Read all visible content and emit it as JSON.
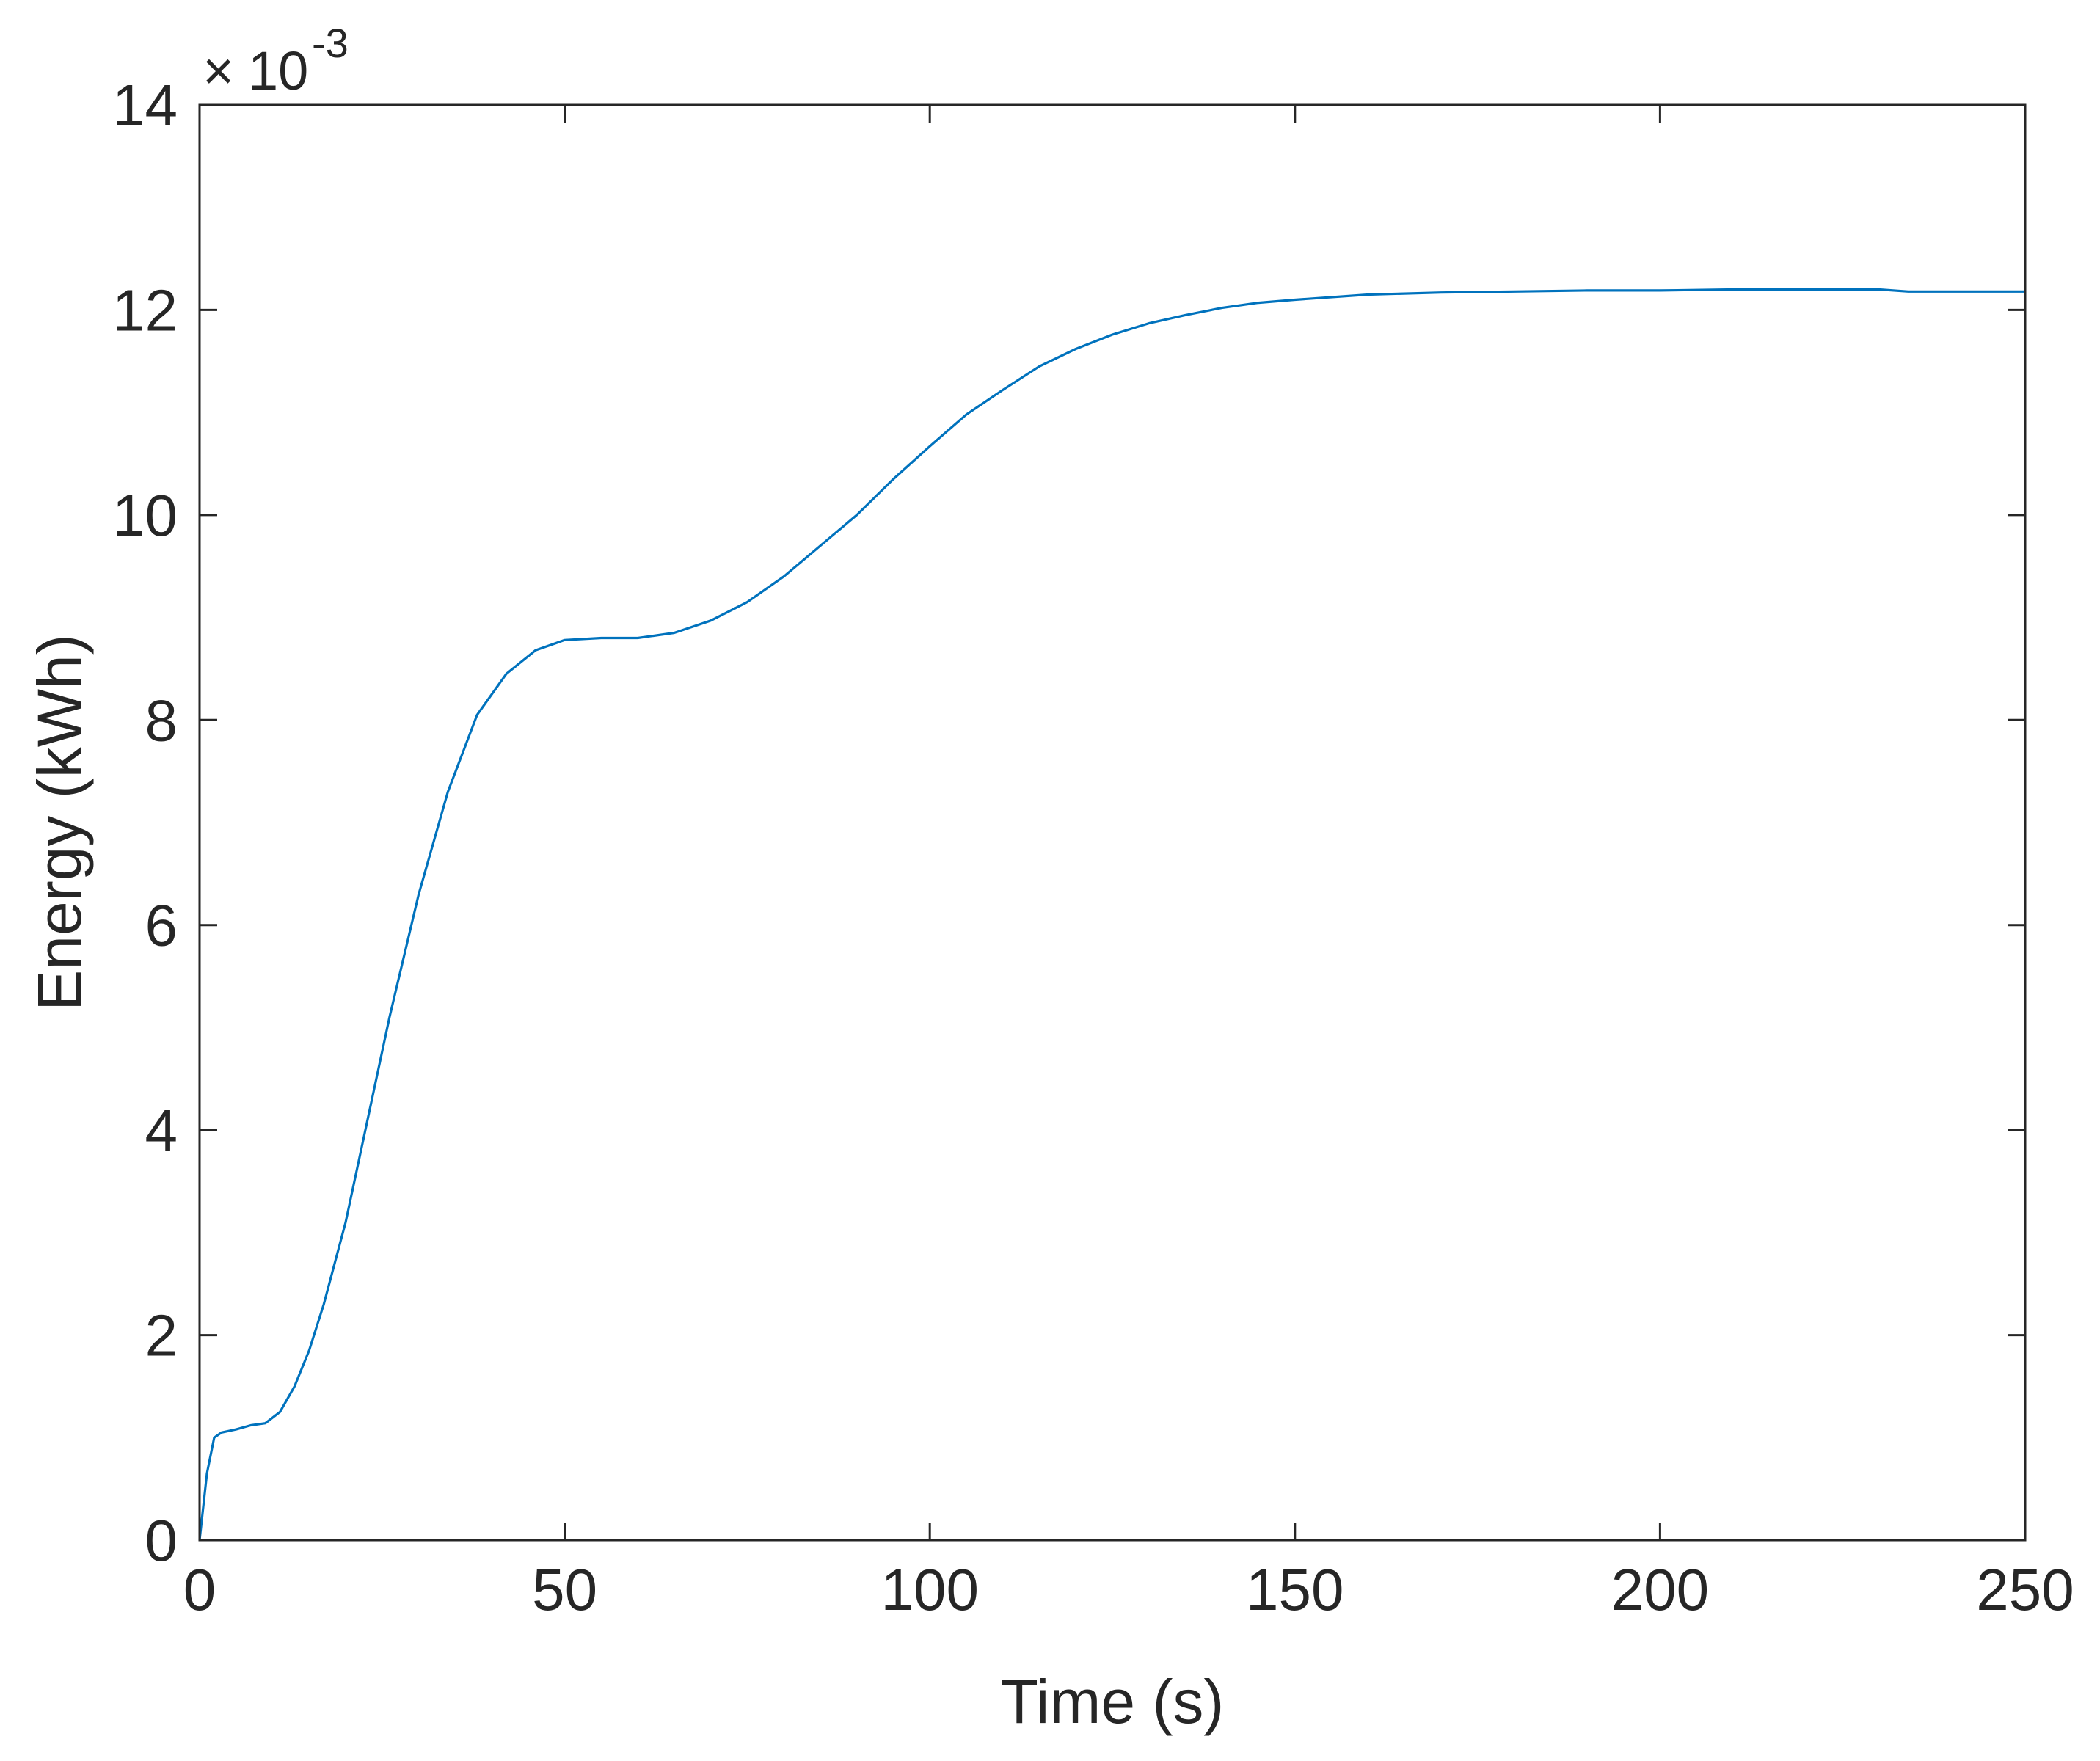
{
  "chart_data": {
    "type": "line",
    "title": "",
    "xlabel": "Time (s)",
    "ylabel": "Energy (kWh)",
    "xlim": [
      0,
      250
    ],
    "ylim": [
      0,
      14
    ],
    "x_ticks": [
      0,
      50,
      100,
      150,
      200,
      250
    ],
    "y_ticks": [
      0,
      2,
      4,
      6,
      8,
      10,
      12,
      14
    ],
    "y_exponent": {
      "base": "10",
      "power": "-3"
    },
    "grid": false,
    "legend": "none",
    "series": [
      {
        "color": "#0072BD",
        "x": [
          0,
          1,
          2,
          3,
          5,
          7,
          9,
          11,
          13,
          15,
          17,
          20,
          23,
          26,
          30,
          34,
          38,
          42,
          46,
          50,
          55,
          60,
          65,
          70,
          75,
          80,
          85,
          90,
          95,
          100,
          105,
          110,
          115,
          120,
          125,
          130,
          135,
          140,
          145,
          150,
          160,
          170,
          180,
          190,
          200,
          210,
          220,
          230,
          234,
          250
        ],
        "y": [
          0,
          0.65,
          1.0,
          1.05,
          1.08,
          1.12,
          1.14,
          1.25,
          1.5,
          1.85,
          2.3,
          3.1,
          4.1,
          5.1,
          6.3,
          7.3,
          8.05,
          8.45,
          8.68,
          8.78,
          8.8,
          8.8,
          8.85,
          8.97,
          9.15,
          9.4,
          9.7,
          10.0,
          10.35,
          10.67,
          10.98,
          11.22,
          11.45,
          11.62,
          11.76,
          11.87,
          11.95,
          12.02,
          12.07,
          12.1,
          12.15,
          12.17,
          12.18,
          12.19,
          12.19,
          12.2,
          12.2,
          12.2,
          12.18,
          12.18
        ]
      }
    ]
  }
}
